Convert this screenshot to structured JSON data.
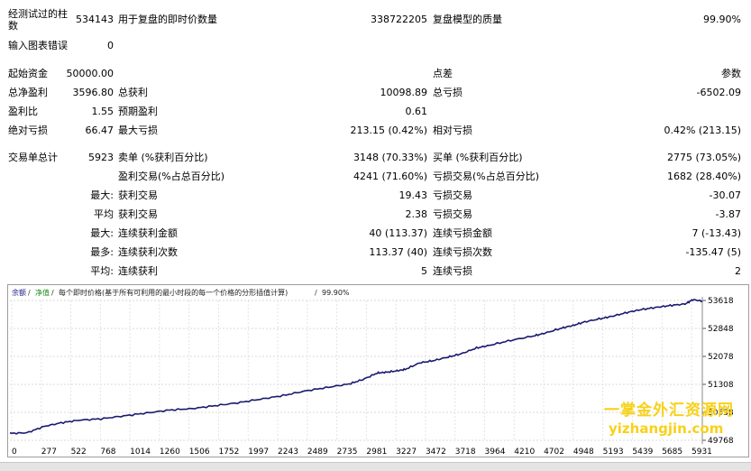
{
  "summary": {
    "bars_tested_label": "经测试过的柱数",
    "bars_tested_value": "534143",
    "ticks_label": "用于复盘的即时价数量",
    "ticks_value": "338722205",
    "quality_label": "复盘模型的质量",
    "quality_value": "99.90%",
    "chart_errors_label": "输入图表错误",
    "chart_errors_value": "0"
  },
  "stats": {
    "initial_deposit_label": "起始资金",
    "initial_deposit_value": "50000.00",
    "spread_label": "点差",
    "spread_value": "参数",
    "net_profit_label": "总净盈利",
    "net_profit_value": "3596.80",
    "gross_profit_label": "总获利",
    "gross_profit_value": "10098.89",
    "gross_loss_label": "总亏损",
    "gross_loss_value": "-6502.09",
    "profit_factor_label": "盈利比",
    "profit_factor_value": "1.55",
    "expected_payoff_label": "预期盈利",
    "expected_payoff_value": "0.61",
    "abs_drawdown_label": "绝对亏损",
    "abs_drawdown_value": "66.47",
    "max_drawdown_label": "最大亏损",
    "max_drawdown_value": "213.15 (0.42%)",
    "rel_drawdown_label": "相对亏损",
    "rel_drawdown_value": "0.42% (213.15)"
  },
  "trades": {
    "total_label": "交易单总计",
    "total_value": "5923",
    "short_label": "卖单 (%获利百分比)",
    "short_value": "3148 (70.33%)",
    "long_label": "买单 (%获利百分比)",
    "long_value": "2775 (73.05%)",
    "profit_trades_label": "盈利交易(%占总百分比)",
    "profit_trades_value": "4241 (71.60%)",
    "loss_trades_label": "亏损交易(%占总百分比)",
    "loss_trades_value": "1682 (28.40%)",
    "largest_prefix": "最大:",
    "largest_profit_label": "获利交易",
    "largest_profit_value": "19.43",
    "largest_loss_label": "亏损交易",
    "largest_loss_value": "-30.07",
    "average_prefix": "平均",
    "average_profit_label": "获利交易",
    "average_profit_value": "2.38",
    "average_loss_label": "亏损交易",
    "average_loss_value": "-3.87",
    "max_consec_prefix": "最大:",
    "max_consec_wins_label": "连续获利金额",
    "max_consec_wins_value": "40 (113.37)",
    "max_consec_losses_label": "连续亏损金额",
    "max_consec_losses_value": "7 (-13.43)",
    "maximal_prefix": "最多:",
    "maximal_consec_profit_label": "连续获利次数",
    "maximal_consec_profit_value": "113.37 (40)",
    "maximal_consec_loss_label": "连续亏损次数",
    "maximal_consec_loss_value": "-135.47 (5)",
    "avg_consec_prefix": "平均:",
    "avg_consec_wins_label": "连续获利",
    "avg_consec_wins_value": "5",
    "avg_consec_losses_label": "连续亏损",
    "avg_consec_losses_value": "2"
  },
  "chart_legend": {
    "balance": "余额",
    "equity": "净值",
    "description": "每个即时价格(基于所有可利用的最小时段的每一个价格的分形插值计算)",
    "quality": "99.90%",
    "separator": "/"
  },
  "watermark": {
    "line1": "一掌金外汇资源网",
    "line2": "yizhangjin.com"
  },
  "chart_data": {
    "type": "line",
    "title": "",
    "xlabel": "",
    "ylabel": "",
    "line_color": "#1a1a6e",
    "x_ticks": [
      "0",
      "277",
      "522",
      "768",
      "1014",
      "1260",
      "1506",
      "1752",
      "1997",
      "2243",
      "2489",
      "2735",
      "2981",
      "3227",
      "3472",
      "3718",
      "3964",
      "4210",
      "4702",
      "4948",
      "5193",
      "5439",
      "5685",
      "5931"
    ],
    "y_ticks": [
      "53618",
      "52848",
      "52078",
      "51308",
      "50538",
      "49768"
    ],
    "ylim": [
      49768,
      53618
    ],
    "xlim": [
      0,
      6083
    ],
    "series": [
      {
        "x": [
          0,
          150,
          300,
          450,
          600,
          800,
          1000,
          1200,
          1400,
          1600,
          1800,
          2000,
          2200,
          2400,
          2600,
          2800,
          2981,
          3100,
          3227,
          3300,
          3400,
          3472,
          3600,
          3718,
          3850,
          3964,
          4100,
          4210,
          4400,
          4600,
          4702,
          4850,
          4948,
          5050,
          5193,
          5300,
          5439,
          5550,
          5685,
          5800,
          5931,
          6000,
          6083
        ],
        "y": [
          49960,
          49975,
          50150,
          50250,
          50320,
          50360,
          50440,
          50520,
          50600,
          50640,
          50720,
          50800,
          50900,
          51000,
          51130,
          51230,
          51320,
          51440,
          51620,
          51640,
          51680,
          51720,
          51900,
          51960,
          52060,
          52150,
          52310,
          52380,
          52520,
          52640,
          52720,
          52860,
          52930,
          53030,
          53120,
          53190,
          53300,
          53370,
          53430,
          53480,
          53520,
          53640,
          53600
        ]
      }
    ]
  }
}
